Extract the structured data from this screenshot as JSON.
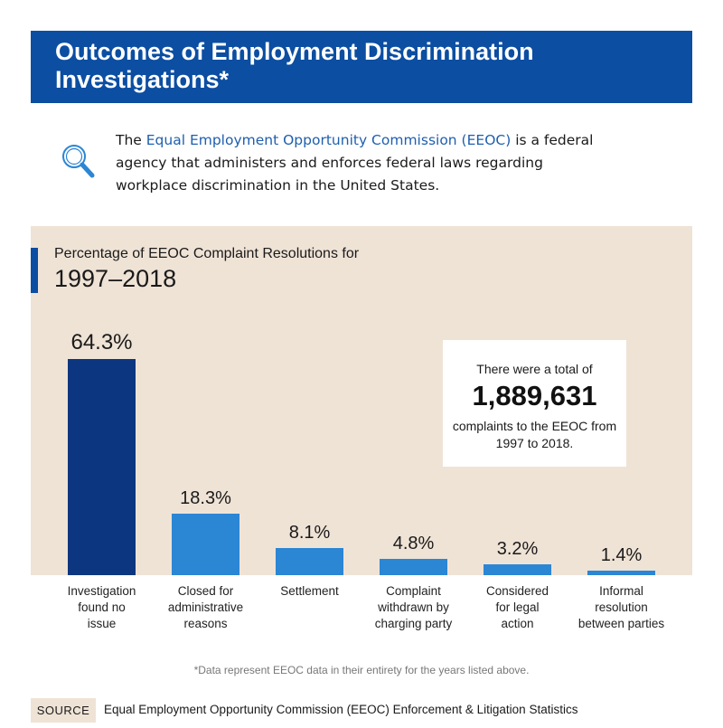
{
  "header": {
    "title": "Outcomes of Employment Discrimination Investigations*"
  },
  "intro": {
    "icon": "magnifying-glass-icon",
    "prefix": "The ",
    "link": "Equal Employment Opportunity Commission (EEOC)",
    "suffix": " is a federal agency that administers and enforces federal laws regarding workplace discrimination in the United States."
  },
  "colors": {
    "banner": "#0b4ea2",
    "panel": "#efe3d6",
    "bar_dark": "#0d3680",
    "bar_light": "#2b86d4",
    "link": "#1e5fae"
  },
  "chart_data": {
    "type": "bar",
    "subtitle": "Percentage of EEOC Complaint Resolutions for",
    "title": "1997–2018",
    "categories": [
      [
        "Investigation",
        "found no",
        "issue"
      ],
      [
        "Closed for",
        "administrative",
        "reasons"
      ],
      [
        "Settlement"
      ],
      [
        "Complaint",
        "withdrawn by",
        "charging party"
      ],
      [
        "Considered",
        "for legal",
        "action"
      ],
      [
        "Informal",
        "resolution",
        "between parties"
      ]
    ],
    "values": [
      64.3,
      18.3,
      8.1,
      4.8,
      3.2,
      1.4
    ],
    "value_labels": [
      "64.3%",
      "18.3%",
      "8.1%",
      "4.8%",
      "3.2%",
      "1.4%"
    ],
    "ylim": [
      0,
      64.3
    ],
    "highlight_index": 0,
    "grid": false
  },
  "callout": {
    "pre": "There were a total of",
    "number": "1,889,631",
    "post": "complaints to the EEOC from 1997 to 2018."
  },
  "footnote": "*Data represent EEOC data in their entirety for the years listed above.",
  "source": {
    "label": "SOURCE",
    "text": "Equal Employment Opportunity Commission (EEOC) Enforcement & Litigation Statistics"
  }
}
